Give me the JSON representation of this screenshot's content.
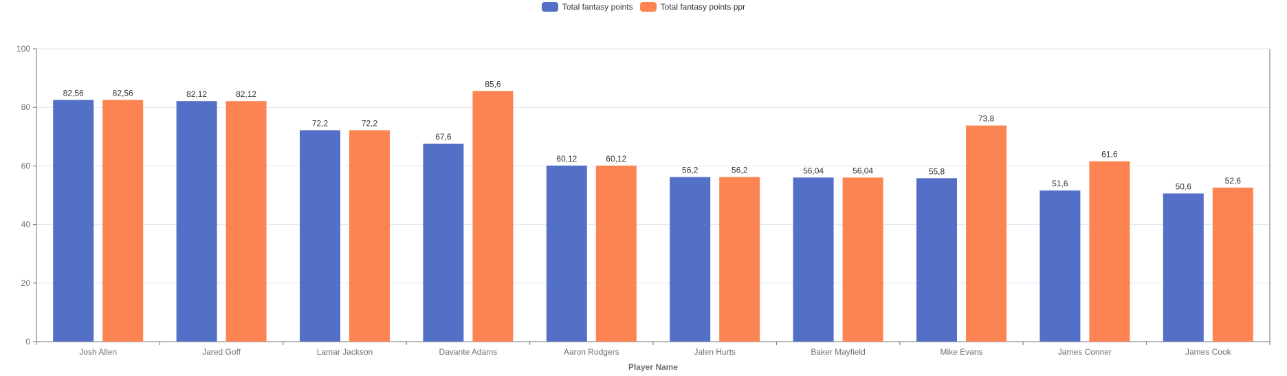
{
  "colors": {
    "series1": "#5470c6",
    "series2": "#fc8452",
    "axis": "#6e7079",
    "grid": "#e0e6f1",
    "label": "#333333"
  },
  "chart_data": {
    "type": "bar",
    "title": "",
    "xlabel": "Player Name",
    "ylabel": "",
    "ylim": [
      0,
      100
    ],
    "yticks": [
      "0",
      "20",
      "40",
      "60",
      "80",
      "100"
    ],
    "grid": true,
    "legend_position": "top-center",
    "categories": [
      "Josh Allen",
      "Jared Goff",
      "Lamar Jackson",
      "Davante Adams",
      "Aaron Rodgers",
      "Jalen Hurts",
      "Baker Mayfield",
      "Mike Evans",
      "James Conner",
      "James Cook"
    ],
    "series": [
      {
        "name": "Total fantasy points",
        "values": [
          82.56,
          82.12,
          72.2,
          67.6,
          60.12,
          56.2,
          56.04,
          55.8,
          51.6,
          50.6
        ],
        "labels": [
          "82,56",
          "82,12",
          "72,2",
          "67,6",
          "60,12",
          "56,2",
          "56,04",
          "55,8",
          "51,6",
          "50,6"
        ]
      },
      {
        "name": "Total fantasy points ppr",
        "values": [
          82.56,
          82.12,
          72.2,
          85.6,
          60.12,
          56.2,
          56.04,
          73.8,
          61.6,
          52.6
        ],
        "labels": [
          "82,56",
          "82,12",
          "72,2",
          "85,6",
          "60,12",
          "56,2",
          "56,04",
          "73,8",
          "61,6",
          "52,6"
        ]
      }
    ]
  }
}
